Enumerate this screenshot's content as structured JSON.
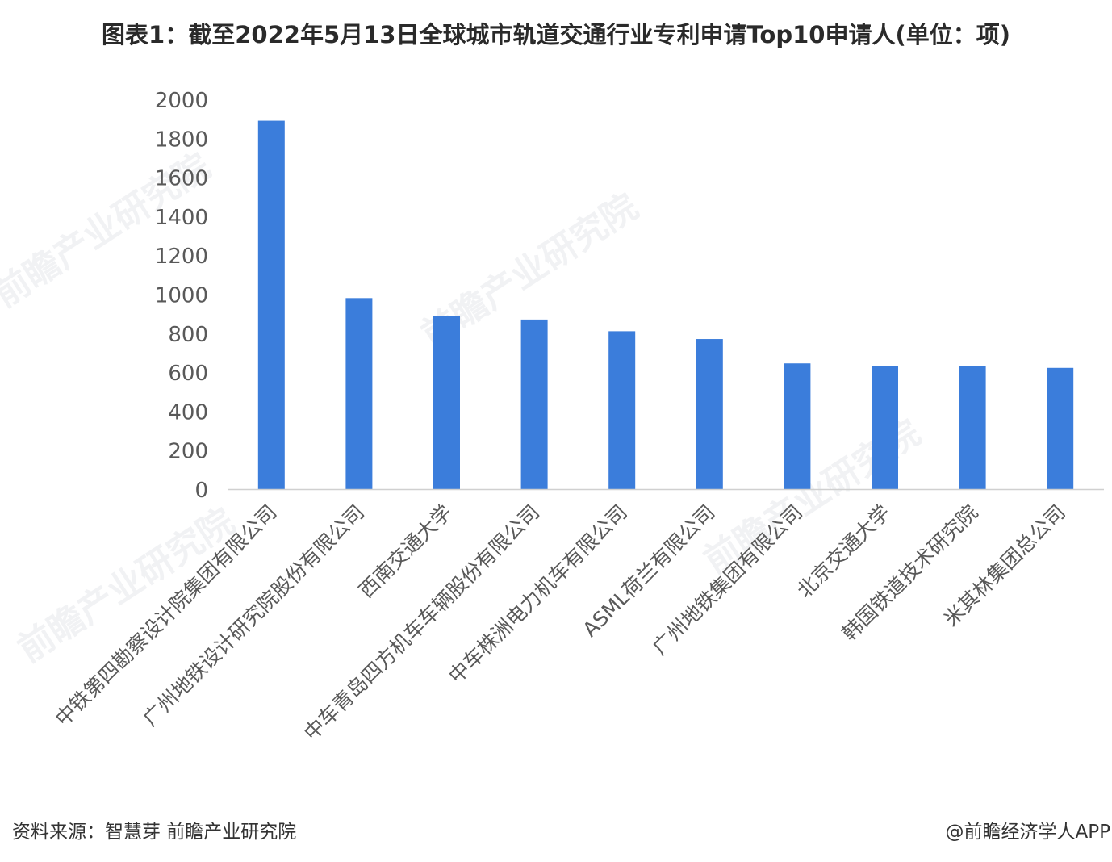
{
  "title": "图表1：截至2022年5月13日全球城市轨道交通行业专利申请Top10申请人(单位：项)",
  "source": "资料来源：智慧芽 前瞻产业研究院",
  "credit": "@前瞻经济学人APP",
  "watermark_text": "前瞻产业研究院",
  "colors": {
    "bar": "#3b7ddb",
    "axis": "#d0d0d0",
    "tick_text": "#595959"
  },
  "chart_data": {
    "type": "bar",
    "title": "图表1：截至2022年5月13日全球城市轨道交通行业专利申请Top10申请人(单位：项)",
    "xlabel": "",
    "ylabel": "",
    "ylim": [
      0,
      2000
    ],
    "yticks": [
      0,
      200,
      400,
      600,
      800,
      1000,
      1200,
      1400,
      1600,
      1800,
      2000
    ],
    "grid": false,
    "categories": [
      "中铁第四勘察设计院集团有限公司",
      "广州地铁设计研究院股份有限公司",
      "西南交通大学",
      "中车青岛四方机车车辆股份有限公司",
      "中车株洲电力机车有限公司",
      "ASML荷兰有限公司",
      "广州地铁集团有限公司",
      "北京交通大学",
      "韩国铁道技术研究院",
      "米其林集团总公司"
    ],
    "values": [
      1890,
      980,
      890,
      870,
      810,
      770,
      645,
      630,
      630,
      622
    ]
  }
}
